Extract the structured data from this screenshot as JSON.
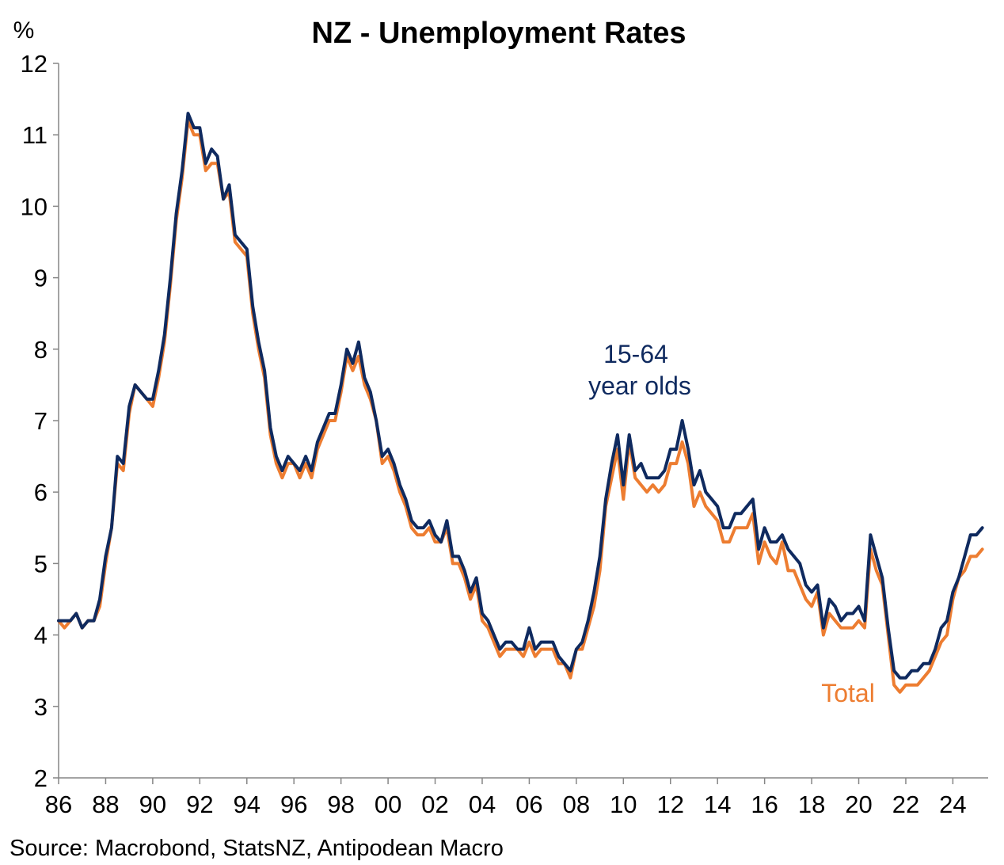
{
  "chart_data": {
    "type": "line",
    "title": "NZ - Unemployment Rates",
    "ylabel": "%",
    "xlabel": "",
    "ylim": [
      2,
      12
    ],
    "xlim": [
      1986,
      2025.5
    ],
    "yticks": [
      2,
      3,
      4,
      5,
      6,
      7,
      8,
      9,
      10,
      11,
      12
    ],
    "xticks": [
      {
        "value": 1986,
        "label": "86"
      },
      {
        "value": 1988,
        "label": "88"
      },
      {
        "value": 1990,
        "label": "90"
      },
      {
        "value": 1992,
        "label": "92"
      },
      {
        "value": 1994,
        "label": "94"
      },
      {
        "value": 1996,
        "label": "96"
      },
      {
        "value": 1998,
        "label": "98"
      },
      {
        "value": 2000,
        "label": "00"
      },
      {
        "value": 2002,
        "label": "02"
      },
      {
        "value": 2004,
        "label": "04"
      },
      {
        "value": 2006,
        "label": "06"
      },
      {
        "value": 2008,
        "label": "08"
      },
      {
        "value": 2010,
        "label": "10"
      },
      {
        "value": 2012,
        "label": "12"
      },
      {
        "value": 2014,
        "label": "14"
      },
      {
        "value": 2016,
        "label": "16"
      },
      {
        "value": 2018,
        "label": "18"
      },
      {
        "value": 2020,
        "label": "20"
      },
      {
        "value": 2022,
        "label": "22"
      },
      {
        "value": 2024,
        "label": "24"
      }
    ],
    "grid": false,
    "legend": "inline annotations",
    "x": [
      1986.0,
      1986.25,
      1986.5,
      1986.75,
      1987.0,
      1987.25,
      1987.5,
      1987.75,
      1988.0,
      1988.25,
      1988.5,
      1988.75,
      1989.0,
      1989.25,
      1989.5,
      1989.75,
      1990.0,
      1990.25,
      1990.5,
      1990.75,
      1991.0,
      1991.25,
      1991.5,
      1991.75,
      1992.0,
      1992.25,
      1992.5,
      1992.75,
      1993.0,
      1993.25,
      1993.5,
      1993.75,
      1994.0,
      1994.25,
      1994.5,
      1994.75,
      1995.0,
      1995.25,
      1995.5,
      1995.75,
      1996.0,
      1996.25,
      1996.5,
      1996.75,
      1997.0,
      1997.25,
      1997.5,
      1997.75,
      1998.0,
      1998.25,
      1998.5,
      1998.75,
      1999.0,
      1999.25,
      1999.5,
      1999.75,
      2000.0,
      2000.25,
      2000.5,
      2000.75,
      2001.0,
      2001.25,
      2001.5,
      2001.75,
      2002.0,
      2002.25,
      2002.5,
      2002.75,
      2003.0,
      2003.25,
      2003.5,
      2003.75,
      2004.0,
      2004.25,
      2004.5,
      2004.75,
      2005.0,
      2005.25,
      2005.5,
      2005.75,
      2006.0,
      2006.25,
      2006.5,
      2006.75,
      2007.0,
      2007.25,
      2007.5,
      2007.75,
      2008.0,
      2008.25,
      2008.5,
      2008.75,
      2009.0,
      2009.25,
      2009.5,
      2009.75,
      2010.0,
      2010.25,
      2010.5,
      2010.75,
      2011.0,
      2011.25,
      2011.5,
      2011.75,
      2012.0,
      2012.25,
      2012.5,
      2012.75,
      2013.0,
      2013.25,
      2013.5,
      2013.75,
      2014.0,
      2014.25,
      2014.5,
      2014.75,
      2015.0,
      2015.25,
      2015.5,
      2015.75,
      2016.0,
      2016.25,
      2016.5,
      2016.75,
      2017.0,
      2017.25,
      2017.5,
      2017.75,
      2018.0,
      2018.25,
      2018.5,
      2018.75,
      2019.0,
      2019.25,
      2019.5,
      2019.75,
      2020.0,
      2020.25,
      2020.5,
      2020.75,
      2021.0,
      2021.25,
      2021.5,
      2021.75,
      2022.0,
      2022.25,
      2022.5,
      2022.75,
      2023.0,
      2023.25,
      2023.5,
      2023.75,
      2024.0,
      2024.25,
      2024.5,
      2024.75,
      2025.0,
      2025.25
    ],
    "series": [
      {
        "name": "Total",
        "color": "#ED7D31",
        "values": [
          4.2,
          4.1,
          4.2,
          4.3,
          4.1,
          4.2,
          4.2,
          4.4,
          5.0,
          5.5,
          6.4,
          6.3,
          7.1,
          7.5,
          7.4,
          7.3,
          7.2,
          7.6,
          8.1,
          8.9,
          9.8,
          10.4,
          11.2,
          11.0,
          11.0,
          10.5,
          10.6,
          10.6,
          10.1,
          10.2,
          9.5,
          9.4,
          9.3,
          8.5,
          8.0,
          7.6,
          6.8,
          6.4,
          6.2,
          6.4,
          6.4,
          6.2,
          6.4,
          6.2,
          6.6,
          6.8,
          7.0,
          7.0,
          7.4,
          7.9,
          7.7,
          7.9,
          7.5,
          7.3,
          7.0,
          6.4,
          6.5,
          6.3,
          6.0,
          5.8,
          5.5,
          5.4,
          5.4,
          5.5,
          5.3,
          5.3,
          5.5,
          5.0,
          5.0,
          4.8,
          4.5,
          4.7,
          4.2,
          4.1,
          3.9,
          3.7,
          3.8,
          3.8,
          3.8,
          3.7,
          3.9,
          3.7,
          3.8,
          3.8,
          3.8,
          3.6,
          3.6,
          3.4,
          3.8,
          3.8,
          4.1,
          4.4,
          4.9,
          5.8,
          6.2,
          6.6,
          5.9,
          6.7,
          6.2,
          6.1,
          6.0,
          6.1,
          6.0,
          6.1,
          6.4,
          6.4,
          6.7,
          6.4,
          5.8,
          6.0,
          5.8,
          5.7,
          5.6,
          5.3,
          5.3,
          5.5,
          5.5,
          5.5,
          5.7,
          5.0,
          5.3,
          5.1,
          5.0,
          5.3,
          4.9,
          4.9,
          4.7,
          4.5,
          4.4,
          4.6,
          4.0,
          4.3,
          4.2,
          4.1,
          4.1,
          4.1,
          4.2,
          4.1,
          5.2,
          4.9,
          4.7,
          4.0,
          3.3,
          3.2,
          3.3,
          3.3,
          3.3,
          3.4,
          3.5,
          3.7,
          3.9,
          4.0,
          4.5,
          4.8,
          4.9,
          5.1,
          5.1,
          5.2
        ]
      },
      {
        "name": "15-64 year olds",
        "color": "#0F2A5F",
        "values": [
          4.2,
          4.2,
          4.2,
          4.3,
          4.1,
          4.2,
          4.2,
          4.5,
          5.1,
          5.5,
          6.5,
          6.4,
          7.2,
          7.5,
          7.4,
          7.3,
          7.3,
          7.7,
          8.2,
          9.0,
          9.9,
          10.5,
          11.3,
          11.1,
          11.1,
          10.6,
          10.8,
          10.7,
          10.1,
          10.3,
          9.6,
          9.5,
          9.4,
          8.6,
          8.1,
          7.7,
          6.9,
          6.5,
          6.3,
          6.5,
          6.4,
          6.3,
          6.5,
          6.3,
          6.7,
          6.9,
          7.1,
          7.1,
          7.5,
          8.0,
          7.8,
          8.1,
          7.6,
          7.4,
          7.0,
          6.5,
          6.6,
          6.4,
          6.1,
          5.9,
          5.6,
          5.5,
          5.5,
          5.6,
          5.4,
          5.3,
          5.6,
          5.1,
          5.1,
          4.9,
          4.6,
          4.8,
          4.3,
          4.2,
          4.0,
          3.8,
          3.9,
          3.9,
          3.8,
          3.8,
          4.1,
          3.8,
          3.9,
          3.9,
          3.9,
          3.7,
          3.6,
          3.5,
          3.8,
          3.9,
          4.2,
          4.6,
          5.1,
          5.9,
          6.4,
          6.8,
          6.1,
          6.8,
          6.3,
          6.4,
          6.2,
          6.2,
          6.2,
          6.3,
          6.6,
          6.6,
          7.0,
          6.6,
          6.1,
          6.3,
          6.0,
          5.9,
          5.8,
          5.5,
          5.5,
          5.7,
          5.7,
          5.8,
          5.9,
          5.2,
          5.5,
          5.3,
          5.3,
          5.4,
          5.2,
          5.1,
          5.0,
          4.7,
          4.6,
          4.7,
          4.1,
          4.5,
          4.4,
          4.2,
          4.3,
          4.3,
          4.4,
          4.2,
          5.4,
          5.1,
          4.8,
          4.1,
          3.5,
          3.4,
          3.4,
          3.5,
          3.5,
          3.6,
          3.6,
          3.8,
          4.1,
          4.2,
          4.6,
          4.8,
          5.1,
          5.4,
          5.4,
          5.5
        ]
      }
    ],
    "annotations": [
      {
        "text_lines": [
          "15-64",
          "year olds"
        ],
        "series": "15-64 year olds"
      },
      {
        "text_lines": [
          "Total"
        ],
        "series": "Total"
      }
    ]
  },
  "source_note": "Source: Macrobond, StatsNZ, Antipodean Macro"
}
